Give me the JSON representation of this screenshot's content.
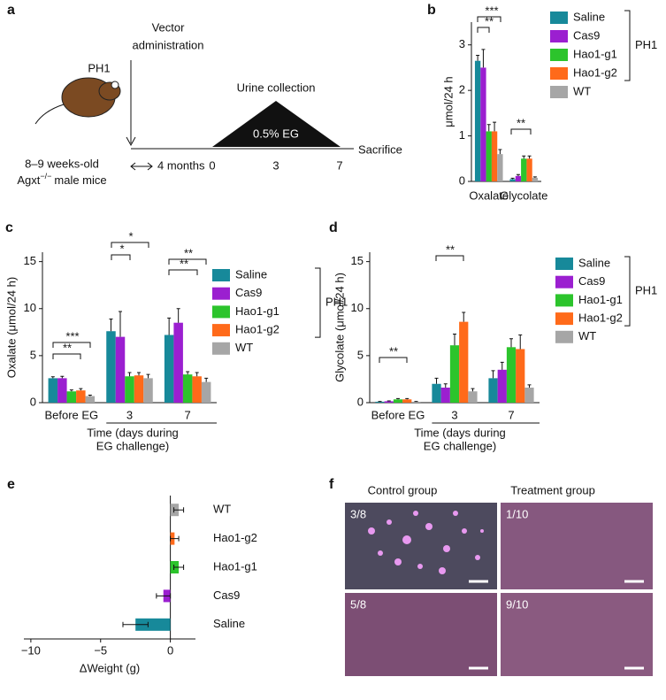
{
  "diagram": {
    "panel": "a",
    "mouse": "PH1",
    "vector": [
      "Vector",
      "administration"
    ],
    "urine": "Urine collection",
    "eg": "0.5% EG",
    "sacrifice": "Sacrifice",
    "duration": "4 months",
    "days": [
      "0",
      "3",
      "7"
    ],
    "mouse_age": "8–9 weeks-old",
    "mouse_strain": [
      "Agxt",
      "−/−",
      "male mice"
    ]
  },
  "chart_data": [
    {
      "panel": "b",
      "type": "bar",
      "ylabel": "μmol/24 h",
      "categories": [
        "Oxalate",
        "Glycolate"
      ],
      "series": [
        {
          "name": "Saline",
          "color": "#17899a",
          "values": [
            2.65,
            0.05
          ],
          "errors": [
            0.12,
            0.02
          ]
        },
        {
          "name": "Cas9",
          "color": "#9b1fd0",
          "values": [
            2.5,
            0.12
          ],
          "errors": [
            0.4,
            0.03
          ]
        },
        {
          "name": "Hao1-g1",
          "color": "#2cc42c",
          "values": [
            1.1,
            0.5
          ],
          "errors": [
            0.15,
            0.06
          ]
        },
        {
          "name": "Hao1-g2",
          "color": "#ff6a1a",
          "values": [
            1.1,
            0.5
          ],
          "errors": [
            0.2,
            0.06
          ]
        },
        {
          "name": "WT",
          "color": "#a6a6a6",
          "values": [
            0.6,
            0.08
          ],
          "errors": [
            0.1,
            0.02
          ]
        }
      ],
      "ylim": [
        0,
        3.5
      ],
      "yticks": [
        0,
        1,
        2,
        3
      ],
      "legend_group": "PH1",
      "annotations": [
        "**",
        "***",
        "**"
      ]
    },
    {
      "panel": "c",
      "type": "bar",
      "ylabel": "Oxalate (μmol/24 h)",
      "xlabel": [
        "Time (days during",
        "EG challenge)"
      ],
      "categories": [
        "Before EG",
        "3",
        "7"
      ],
      "series": [
        {
          "name": "Saline",
          "color": "#17899a",
          "values": [
            2.6,
            7.6,
            7.2
          ],
          "errors": [
            0.15,
            1.3,
            1.8
          ]
        },
        {
          "name": "Cas9",
          "color": "#9b1fd0",
          "values": [
            2.6,
            7.0,
            8.5
          ],
          "errors": [
            0.2,
            2.7,
            1.5
          ]
        },
        {
          "name": "Hao1-g1",
          "color": "#2cc42c",
          "values": [
            1.2,
            2.8,
            3.0
          ],
          "errors": [
            0.15,
            0.4,
            0.3
          ]
        },
        {
          "name": "Hao1-g2",
          "color": "#ff6a1a",
          "values": [
            1.3,
            2.9,
            2.8
          ],
          "errors": [
            0.2,
            0.3,
            0.4
          ]
        },
        {
          "name": "WT",
          "color": "#a6a6a6",
          "values": [
            0.7,
            2.6,
            2.2
          ],
          "errors": [
            0.1,
            0.4,
            0.4
          ]
        }
      ],
      "ylim": [
        0,
        16
      ],
      "yticks": [
        0,
        5,
        10,
        15
      ],
      "legend_group": "PH1",
      "annotations": [
        "***",
        "**",
        "*",
        "*",
        "**",
        "**"
      ]
    },
    {
      "panel": "d",
      "type": "bar",
      "ylabel": "Glycolate (μmol/24 h)",
      "xlabel": [
        "Time (days during",
        "EG challenge)"
      ],
      "categories": [
        "Before EG",
        "3",
        "7"
      ],
      "series": [
        {
          "name": "Saline",
          "color": "#17899a",
          "values": [
            0.1,
            2.0,
            2.6
          ],
          "errors": [
            0.03,
            0.6,
            0.8
          ]
        },
        {
          "name": "Cas9",
          "color": "#9b1fd0",
          "values": [
            0.15,
            1.6,
            3.5
          ],
          "errors": [
            0.04,
            0.4,
            0.8
          ]
        },
        {
          "name": "Hao1-g1",
          "color": "#2cc42c",
          "values": [
            0.35,
            6.1,
            5.9
          ],
          "errors": [
            0.08,
            1.2,
            0.9
          ]
        },
        {
          "name": "Hao1-g2",
          "color": "#ff6a1a",
          "values": [
            0.35,
            8.6,
            5.7
          ],
          "errors": [
            0.08,
            1.0,
            1.5
          ]
        },
        {
          "name": "WT",
          "color": "#a6a6a6",
          "values": [
            0.1,
            1.2,
            1.6
          ],
          "errors": [
            0.03,
            0.3,
            0.3
          ]
        }
      ],
      "ylim": [
        0,
        16
      ],
      "yticks": [
        0,
        5,
        10,
        15
      ],
      "legend_group": "PH1",
      "annotations": [
        "**",
        "**"
      ]
    },
    {
      "panel": "e",
      "type": "barh",
      "xlabel": "ΔWeight (g)",
      "categories": [
        "WT",
        "Hao1-g2",
        "Hao1-g1",
        "Cas9",
        "Saline"
      ],
      "values": [
        0.6,
        0.3,
        0.6,
        -0.5,
        -2.5
      ],
      "errors": [
        0.35,
        0.3,
        0.35,
        0.5,
        0.9
      ],
      "colors": [
        "#a6a6a6",
        "#ff6a1a",
        "#2cc42c",
        "#9b1fd0",
        "#17899a"
      ],
      "xlim": [
        -10.5,
        1.8
      ],
      "xticks": [
        {
          "value": -10,
          "label": "−10"
        },
        {
          "value": -5,
          "label": "−5"
        },
        0
      ]
    }
  ],
  "histology": {
    "panel": "f",
    "columns": [
      "Control group",
      "Treatment group"
    ],
    "counts": [
      "3/8",
      "1/10",
      "5/8",
      "9/10"
    ]
  }
}
